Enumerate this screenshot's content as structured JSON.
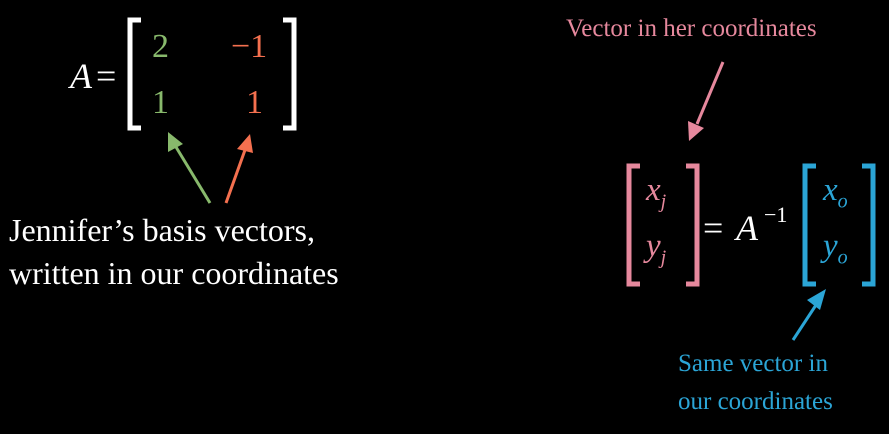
{
  "colors": {
    "background": "#000000",
    "white": "#ffffff",
    "green": "#88b96c",
    "red": "#f4704f",
    "pink": "#e6889d",
    "blue": "#2ba5d6"
  },
  "matrix_eq": {
    "symbol": "A",
    "equals": "=",
    "entries": {
      "r1c1": "2",
      "r1c2": "−1",
      "r2c1": "1",
      "r2c2": "1"
    }
  },
  "annotations": {
    "basis_line1": "Jennifer’s basis vectors,",
    "basis_line2": "written in our coordinates",
    "her_coords": "Vector in her coordinates",
    "same_line1": "Same vector in",
    "same_line2": "our coordinates"
  },
  "transform_eq": {
    "xj": "x",
    "xj_sub": "j",
    "yj": "y",
    "yj_sub": "j",
    "equals": "=",
    "A": "A",
    "inv": "−1",
    "xo": "x",
    "xo_sub": "o",
    "yo": "y",
    "yo_sub": "o"
  }
}
